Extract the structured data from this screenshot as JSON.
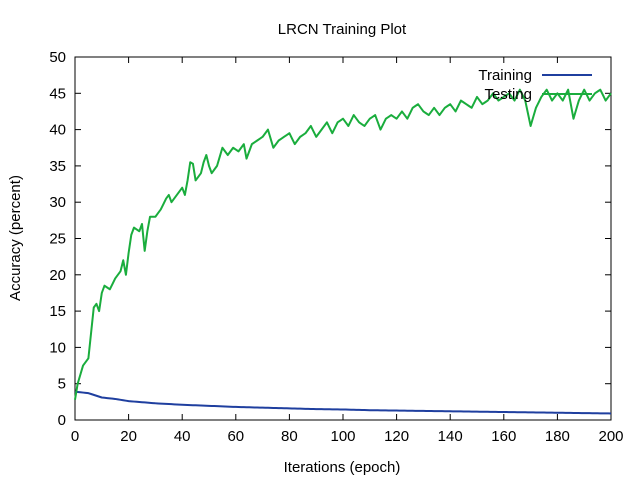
{
  "chart_data": {
    "type": "line",
    "title": "LRCN Training Plot",
    "xlabel": "Iterations (epoch)",
    "ylabel": "Accuracy (percent)",
    "xlim": [
      0,
      200
    ],
    "ylim": [
      0,
      50
    ],
    "xticks": [
      0,
      20,
      40,
      60,
      80,
      100,
      120,
      140,
      160,
      180,
      200
    ],
    "yticks": [
      0,
      5,
      10,
      15,
      20,
      25,
      30,
      35,
      40,
      45,
      50
    ],
    "grid": false,
    "legend_position": "top-right",
    "series": [
      {
        "name": "Training",
        "color": "#1f3f9f",
        "anchors": [
          [
            0,
            3.9
          ],
          [
            5,
            3.7
          ],
          [
            10,
            3.1
          ],
          [
            15,
            2.9
          ],
          [
            20,
            2.6
          ],
          [
            30,
            2.3
          ],
          [
            40,
            2.1
          ],
          [
            50,
            1.95
          ],
          [
            60,
            1.8
          ],
          [
            70,
            1.7
          ],
          [
            80,
            1.6
          ],
          [
            90,
            1.5
          ],
          [
            100,
            1.45
          ],
          [
            110,
            1.35
          ],
          [
            120,
            1.3
          ],
          [
            130,
            1.25
          ],
          [
            140,
            1.2
          ],
          [
            150,
            1.15
          ],
          [
            160,
            1.1
          ],
          [
            170,
            1.05
          ],
          [
            180,
            1.0
          ],
          [
            190,
            0.95
          ],
          [
            200,
            0.9
          ]
        ],
        "points": 200
      },
      {
        "name": "Testing",
        "color": "#1aad3d",
        "anchors": [
          [
            0,
            2.8
          ],
          [
            1,
            5
          ],
          [
            3,
            7.5
          ],
          [
            5,
            8.5
          ],
          [
            6,
            12
          ],
          [
            7,
            15.5
          ],
          [
            8,
            16
          ],
          [
            9,
            15
          ],
          [
            10,
            17.5
          ],
          [
            11,
            18.5
          ],
          [
            13,
            18
          ],
          [
            15,
            19.5
          ],
          [
            17,
            20.5
          ],
          [
            18,
            22
          ],
          [
            19,
            20
          ],
          [
            20,
            23
          ],
          [
            21,
            25.5
          ],
          [
            22,
            26.5
          ],
          [
            24,
            26
          ],
          [
            25,
            27
          ],
          [
            26,
            23.3
          ],
          [
            27,
            26
          ],
          [
            28,
            28
          ],
          [
            30,
            28
          ],
          [
            32,
            29
          ],
          [
            34,
            30.5
          ],
          [
            35,
            31
          ],
          [
            36,
            30
          ],
          [
            38,
            31
          ],
          [
            40,
            32
          ],
          [
            41,
            31
          ],
          [
            42,
            33
          ],
          [
            43,
            35.5
          ],
          [
            44,
            35.3
          ],
          [
            45,
            33
          ],
          [
            47,
            34
          ],
          [
            48,
            35.5
          ],
          [
            49,
            36.5
          ],
          [
            50,
            35
          ],
          [
            51,
            34
          ],
          [
            53,
            35
          ],
          [
            55,
            37.5
          ],
          [
            57,
            36.5
          ],
          [
            59,
            37.5
          ],
          [
            61,
            37
          ],
          [
            63,
            38
          ],
          [
            64,
            36
          ],
          [
            66,
            38
          ],
          [
            68,
            38.5
          ],
          [
            70,
            39
          ],
          [
            72,
            40
          ],
          [
            74,
            37.5
          ],
          [
            76,
            38.5
          ],
          [
            78,
            39
          ],
          [
            80,
            39.5
          ],
          [
            82,
            38
          ],
          [
            84,
            39
          ],
          [
            86,
            39.5
          ],
          [
            88,
            40.5
          ],
          [
            90,
            39
          ],
          [
            92,
            40
          ],
          [
            94,
            41
          ],
          [
            96,
            39.5
          ],
          [
            98,
            41
          ],
          [
            100,
            41.5
          ],
          [
            102,
            40.5
          ],
          [
            104,
            42
          ],
          [
            106,
            41
          ],
          [
            108,
            40.5
          ],
          [
            110,
            41.5
          ],
          [
            112,
            42
          ],
          [
            114,
            40
          ],
          [
            116,
            41.5
          ],
          [
            118,
            42
          ],
          [
            120,
            41.5
          ],
          [
            122,
            42.5
          ],
          [
            124,
            41.5
          ],
          [
            126,
            43
          ],
          [
            128,
            43.5
          ],
          [
            130,
            42.5
          ],
          [
            132,
            42
          ],
          [
            134,
            43
          ],
          [
            136,
            42
          ],
          [
            138,
            43
          ],
          [
            140,
            43.5
          ],
          [
            142,
            42.5
          ],
          [
            144,
            44
          ],
          [
            146,
            43.5
          ],
          [
            148,
            43
          ],
          [
            150,
            44.5
          ],
          [
            152,
            43.5
          ],
          [
            154,
            44
          ],
          [
            156,
            45
          ],
          [
            158,
            44
          ],
          [
            160,
            44.5
          ],
          [
            162,
            45
          ],
          [
            164,
            44
          ],
          [
            166,
            45.5
          ],
          [
            168,
            44
          ],
          [
            170,
            40.5
          ],
          [
            172,
            43
          ],
          [
            174,
            44.5
          ],
          [
            176,
            45.5
          ],
          [
            178,
            44
          ],
          [
            180,
            45
          ],
          [
            182,
            44
          ],
          [
            184,
            45.5
          ],
          [
            186,
            41.5
          ],
          [
            188,
            44
          ],
          [
            190,
            45.5
          ],
          [
            192,
            44
          ],
          [
            194,
            45
          ],
          [
            196,
            45.5
          ],
          [
            198,
            44
          ],
          [
            200,
            45
          ]
        ],
        "points": 200
      }
    ]
  }
}
